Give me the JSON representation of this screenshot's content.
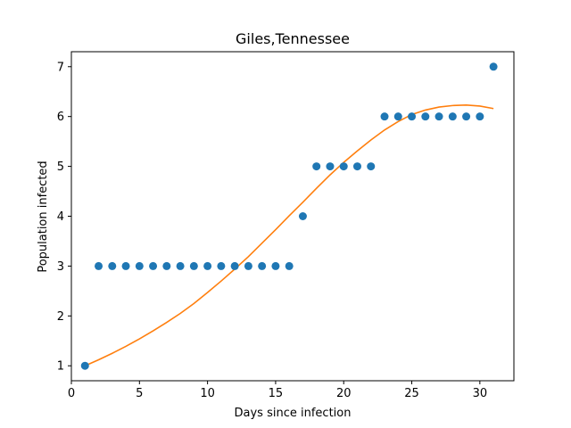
{
  "chart_data": {
    "type": "scatter",
    "title": "Giles,Tennessee",
    "xlabel": "Days since infection",
    "ylabel": "Population infected",
    "xlim": [
      0,
      32.5
    ],
    "ylim": [
      0.7,
      7.3
    ],
    "xticks": [
      0,
      5,
      10,
      15,
      20,
      25,
      30
    ],
    "yticks": [
      1,
      2,
      3,
      4,
      5,
      6,
      7
    ],
    "grid": false,
    "series": [
      {
        "kind": "scatter",
        "color": "#1f77b4",
        "x": [
          1,
          2,
          3,
          4,
          5,
          6,
          7,
          8,
          9,
          10,
          11,
          12,
          13,
          14,
          15,
          16,
          17,
          18,
          19,
          20,
          21,
          22,
          23,
          24,
          25,
          26,
          27,
          28,
          29,
          30,
          31
        ],
        "y": [
          1,
          3,
          3,
          3,
          3,
          3,
          3,
          3,
          3,
          3,
          3,
          3,
          3,
          3,
          3,
          3,
          4,
          5,
          5,
          5,
          5,
          5,
          6,
          6,
          6,
          6,
          6,
          6,
          6,
          6,
          7
        ]
      },
      {
        "kind": "line",
        "color": "#ff7f0e",
        "x": [
          1,
          2,
          3,
          4,
          5,
          6,
          7,
          8,
          9,
          10,
          11,
          12,
          13,
          14,
          15,
          16,
          17,
          18,
          19,
          20,
          21,
          22,
          23,
          24,
          25,
          26,
          27,
          28,
          29,
          30,
          31
        ],
        "y": [
          1.0,
          1.12,
          1.25,
          1.39,
          1.54,
          1.7,
          1.87,
          2.05,
          2.25,
          2.47,
          2.7,
          2.94,
          3.19,
          3.46,
          3.73,
          4.01,
          4.28,
          4.56,
          4.83,
          5.08,
          5.31,
          5.53,
          5.73,
          5.9,
          6.04,
          6.13,
          6.19,
          6.22,
          6.23,
          6.21,
          6.16
        ]
      }
    ]
  }
}
